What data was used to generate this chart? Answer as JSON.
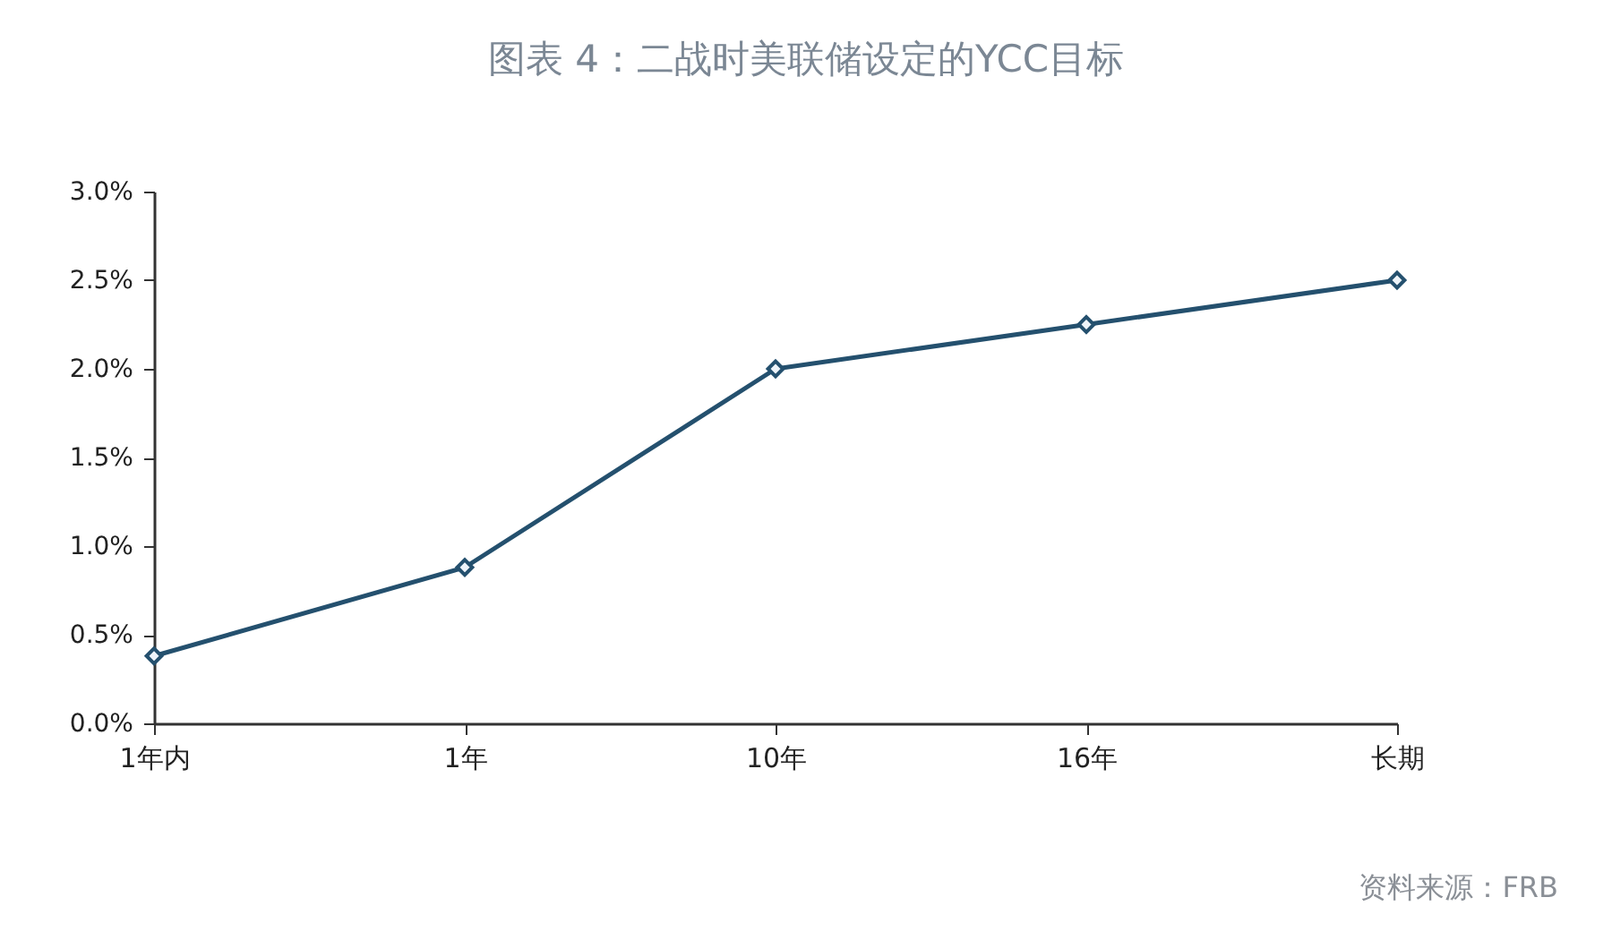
{
  "chart_data": {
    "type": "line",
    "title": "图表 4：二战时美联储设定的YCC目标",
    "categories": [
      "1年内",
      "1年",
      "10年",
      "16年",
      "长期"
    ],
    "series": [
      {
        "color": "#24506e",
        "values": [
          0.38,
          0.88,
          2.0,
          2.25,
          2.5
        ]
      }
    ],
    "ylim": [
      0,
      3
    ],
    "yticks": [
      {
        "value": 0,
        "label": "0.0%"
      },
      {
        "value": 0.5,
        "label": "0.5%"
      },
      {
        "value": 1,
        "label": "1.0%"
      },
      {
        "value": 1.5,
        "label": "1.5%"
      },
      {
        "value": 2,
        "label": "2.0%"
      },
      {
        "value": 2.5,
        "label": "2.5%"
      },
      {
        "value": 3,
        "label": "3.0%"
      }
    ],
    "marker": "diamond",
    "line_style": "solid",
    "annotations": [
      "资料来源：FRB"
    ]
  }
}
